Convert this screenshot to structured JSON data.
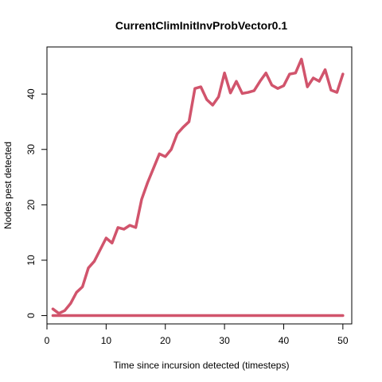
{
  "chart_data": {
    "type": "line",
    "title": "CurrentClimInitInvProbVector0.1",
    "xlabel": "Time since incursion detected (timesteps)",
    "ylabel": "Nodes pest detected",
    "xlim": [
      0,
      51.5
    ],
    "ylim": [
      -1.5,
      48.5
    ],
    "xticks": [
      0,
      10,
      20,
      30,
      40,
      50
    ],
    "yticks": [
      0,
      10,
      20,
      30,
      40
    ],
    "grid": false,
    "line_color": "#D1546C",
    "series": [
      {
        "x": [
          1,
          2,
          3,
          4,
          5,
          6,
          7,
          8,
          9,
          10,
          11,
          12,
          13,
          14,
          15,
          16,
          17,
          18,
          19,
          20,
          21,
          22,
          23,
          24,
          25,
          26,
          27,
          28,
          29,
          30,
          31,
          32,
          33,
          34,
          35,
          36,
          37,
          38,
          39,
          40,
          41,
          42,
          43,
          44,
          45,
          46,
          47,
          48,
          49,
          50
        ],
        "values": [
          1.2,
          0.4,
          0.9,
          2.2,
          4.2,
          5.2,
          8.6,
          9.8,
          11.9,
          14.0,
          13.1,
          15.9,
          15.6,
          16.3,
          15.9,
          21.0,
          24.0,
          26.6,
          29.2,
          28.7,
          30.0,
          32.8,
          34.0,
          35.0,
          41.0,
          41.3,
          39.0,
          38.0,
          39.5,
          43.8,
          40.2,
          42.3,
          40.1,
          40.3,
          40.6,
          42.3,
          43.8,
          41.6,
          41.0,
          41.5,
          43.6,
          43.8,
          46.3,
          41.3,
          42.9,
          42.3,
          44.4,
          40.7,
          40.3,
          43.6
        ]
      },
      {
        "x": [
          1,
          50
        ],
        "values": [
          0,
          0
        ]
      }
    ]
  }
}
